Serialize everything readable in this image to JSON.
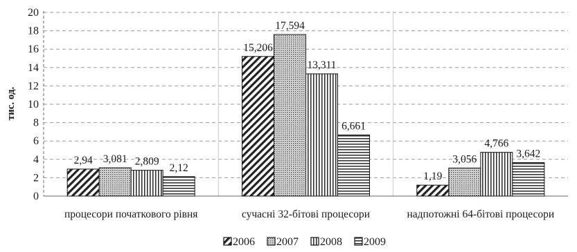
{
  "chart_data": {
    "type": "bar",
    "title": "",
    "xlabel": "",
    "ylabel": "тис. од.",
    "ylim": [
      0,
      20
    ],
    "yticks": [
      0,
      2,
      4,
      6,
      8,
      10,
      12,
      14,
      16,
      18,
      20
    ],
    "grid": "horizontal dashed",
    "legend_position": "bottom",
    "categories": [
      "процесори початкового рівня",
      "сучасні 32-бітові процесори",
      "надпотожні 64-бітові процесори"
    ],
    "series": [
      {
        "name": "2006",
        "values": [
          2.94,
          15.206,
          1.19
        ],
        "labels": [
          "2,94",
          "15,206",
          "1,19"
        ],
        "pattern": "diagonal"
      },
      {
        "name": "2007",
        "values": [
          3.081,
          17.594,
          3.056
        ],
        "labels": [
          "3,081",
          "17,594",
          "3,056"
        ],
        "pattern": "dots"
      },
      {
        "name": "2008",
        "values": [
          2.809,
          13.311,
          4.766
        ],
        "labels": [
          "2,809",
          "13,311",
          "4,766"
        ],
        "pattern": "vertical"
      },
      {
        "name": "2009",
        "values": [
          2.12,
          6.661,
          3.642
        ],
        "labels": [
          "2,12",
          "6,661",
          "3,642"
        ],
        "pattern": "horizontal"
      }
    ]
  }
}
